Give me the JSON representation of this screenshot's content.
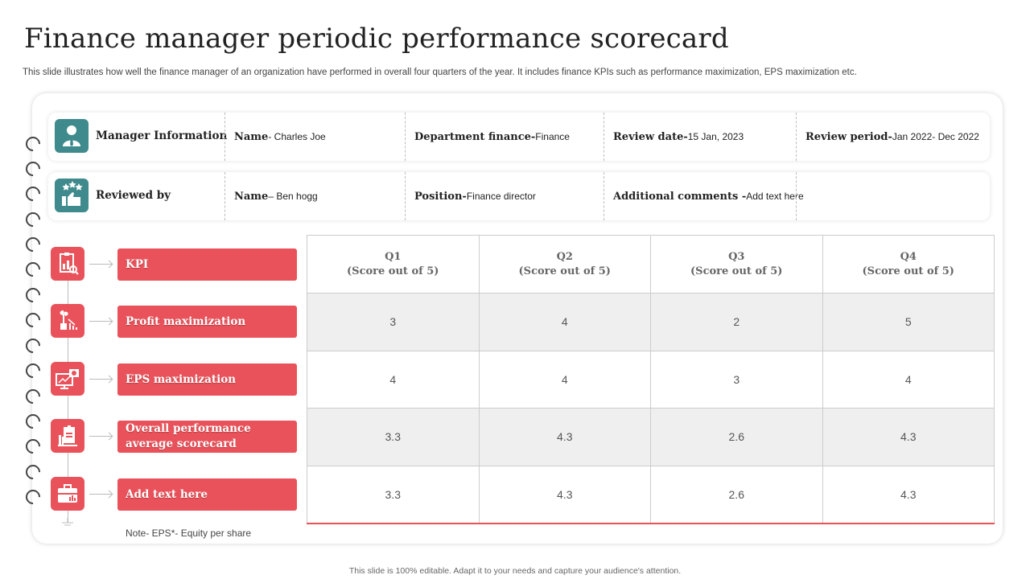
{
  "header": {
    "title": "Finance manager periodic performance scorecard",
    "subtitle": "This slide illustrates how well the finance manager of an organization have performed in overall four quarters of the year.  It includes finance KPIs such as performance maximization, EPS maximization etc."
  },
  "manager_row": {
    "label": "Manager Information",
    "name_key": "Name",
    "name_val": " - Charles Joe",
    "dept_key": "Department finance-",
    "dept_val": "Finance",
    "review_date_key": "Review date-",
    "review_date_val": " 15 Jan, 2023",
    "review_period_key": "Review period-",
    "review_period_val": "Jan 2022- Dec 2022"
  },
  "reviewer_row": {
    "label": "Reviewed by",
    "name_key": "Name",
    "name_val": " – Ben hogg",
    "position_key": "Position-",
    "position_val": "Finance director",
    "comments_key": "Additional comments -",
    "comments_val": "Add text  here"
  },
  "kpis": [
    {
      "label": "KPI",
      "icon": "clipboard-chart-icon"
    },
    {
      "label": "Profit maximization",
      "icon": "plant-growth-chart-icon"
    },
    {
      "label": "EPS maximization",
      "icon": "monitor-presentation-icon"
    },
    {
      "label": "Overall performance average scorecard",
      "icon": "report-building-icon"
    },
    {
      "label": "Add text here",
      "icon": "briefcase-chart-icon"
    }
  ],
  "table": {
    "headers": [
      {
        "q": "Q1",
        "sub": "(Score out of 5)"
      },
      {
        "q": "Q2",
        "sub": "(Score out of 5)"
      },
      {
        "q": "Q3",
        "sub": "(Score out of 5)"
      },
      {
        "q": "Q4",
        "sub": "(Score out of 5)"
      }
    ],
    "rows": [
      [
        "3",
        "4",
        "2",
        "5"
      ],
      [
        "4",
        "4",
        "3",
        "4"
      ],
      [
        "3.3",
        "4.3",
        "2.6",
        "4.3"
      ],
      [
        "3.3",
        "4.3",
        "2.6",
        "4.3"
      ]
    ]
  },
  "note": "Note- EPS*- Equity per share",
  "footer": "This slide is 100% editable.  Adapt it to your needs and capture your audience's attention.",
  "colors": {
    "accent": "#e9525a",
    "teal": "#3f8a8c"
  }
}
